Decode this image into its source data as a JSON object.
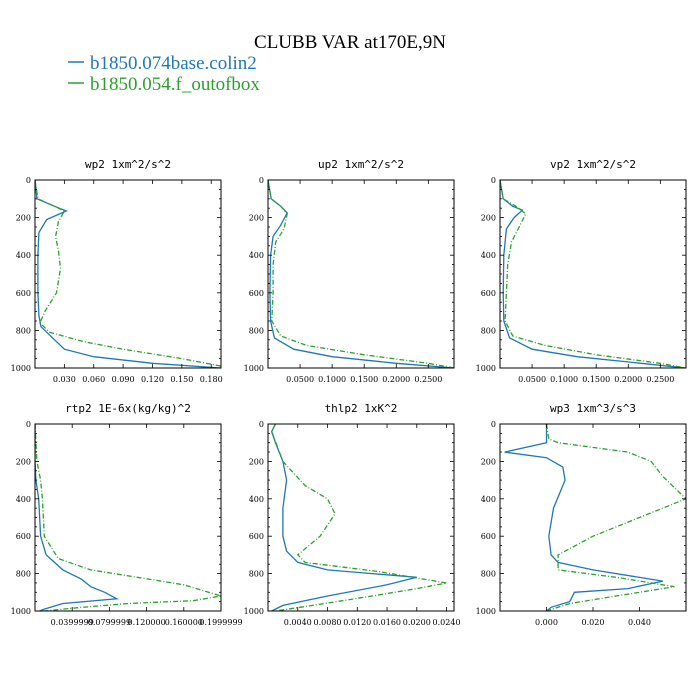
{
  "title": "CLUBB VAR at170E,9N",
  "legend": [
    {
      "label": "b1850.074base.colin2",
      "color": "#1f77b4",
      "dash": "solid"
    },
    {
      "label": "b1850.054.f_outofbox",
      "color": "#2ca02c",
      "dash": "dashdot"
    }
  ],
  "chart_data": [
    {
      "type": "line",
      "title": "wp2  1xm^2/s^2",
      "xlim": [
        0.0,
        0.19
      ],
      "ylim": [
        1000,
        0
      ],
      "xticks": [
        0.03,
        0.06,
        0.09,
        0.12,
        0.15,
        0.18
      ],
      "xtick_labels": [
        "0.030",
        "0.060",
        "0.090",
        "0.120",
        "0.150",
        "0.180"
      ],
      "yticks": [
        0,
        200,
        400,
        600,
        800,
        1000
      ],
      "series": [
        {
          "name": "b1850.074base.colin2",
          "x": [
            0.0,
            0.002,
            0.02,
            0.032,
            0.012,
            0.004,
            0.003,
            0.003,
            0.004,
            0.006,
            0.02,
            0.03,
            0.06,
            0.12,
            0.19
          ],
          "y": [
            0,
            100,
            140,
            165,
            210,
            280,
            400,
            600,
            720,
            780,
            850,
            900,
            940,
            975,
            1000
          ]
        },
        {
          "name": "b1850.054.f_outofbox",
          "x": [
            0.0,
            0.003,
            0.02,
            0.03,
            0.024,
            0.021,
            0.024,
            0.026,
            0.022,
            0.01,
            0.005,
            0.015,
            0.05,
            0.09,
            0.15,
            0.19
          ],
          "y": [
            0,
            100,
            140,
            165,
            220,
            300,
            380,
            470,
            600,
            700,
            760,
            810,
            860,
            900,
            950,
            990
          ]
        }
      ]
    },
    {
      "type": "line",
      "title": "up2  1xm^2/s^2",
      "xlim": [
        0.0,
        0.29
      ],
      "ylim": [
        1000,
        0
      ],
      "xticks": [
        0.05,
        0.1,
        0.15,
        0.2,
        0.25
      ],
      "xtick_labels": [
        "0.0500",
        "0.1000",
        "0.1500",
        "0.2000",
        "0.2500"
      ],
      "yticks": [
        0,
        200,
        400,
        600,
        800,
        1000
      ],
      "series": [
        {
          "name": "b1850.074base.colin2",
          "x": [
            0.0,
            0.005,
            0.02,
            0.03,
            0.02,
            0.008,
            0.004,
            0.003,
            0.004,
            0.01,
            0.04,
            0.1,
            0.2,
            0.29
          ],
          "y": [
            0,
            100,
            140,
            175,
            240,
            300,
            400,
            600,
            750,
            840,
            900,
            940,
            975,
            1000
          ]
        },
        {
          "name": "b1850.054.f_outofbox",
          "x": [
            0.0,
            0.005,
            0.02,
            0.03,
            0.025,
            0.012,
            0.008,
            0.008,
            0.006,
            0.02,
            0.06,
            0.15,
            0.25,
            0.29
          ],
          "y": [
            0,
            100,
            140,
            180,
            260,
            330,
            450,
            600,
            750,
            830,
            880,
            930,
            975,
            1000
          ]
        }
      ]
    },
    {
      "type": "line",
      "title": "vp2  1xm^2/s^2",
      "xlim": [
        0.0,
        0.29
      ],
      "ylim": [
        1000,
        0
      ],
      "xticks": [
        0.05,
        0.1,
        0.15,
        0.2,
        0.25
      ],
      "xtick_labels": [
        "0.0500",
        "0.1000",
        "0.1500",
        "0.2000",
        "0.2500"
      ],
      "yticks": [
        0,
        200,
        400,
        600,
        800,
        1000
      ],
      "series": [
        {
          "name": "b1850.074base.colin2",
          "x": [
            0.0,
            0.005,
            0.02,
            0.035,
            0.022,
            0.01,
            0.006,
            0.005,
            0.006,
            0.015,
            0.05,
            0.12,
            0.22,
            0.29
          ],
          "y": [
            0,
            100,
            140,
            160,
            200,
            260,
            400,
            600,
            750,
            840,
            900,
            940,
            975,
            1000
          ]
        },
        {
          "name": "b1850.054.f_outofbox",
          "x": [
            0.0,
            0.005,
            0.025,
            0.04,
            0.03,
            0.018,
            0.012,
            0.01,
            0.008,
            0.02,
            0.07,
            0.15,
            0.25,
            0.29
          ],
          "y": [
            0,
            100,
            140,
            180,
            250,
            330,
            450,
            600,
            750,
            830,
            880,
            930,
            975,
            1000
          ]
        }
      ]
    },
    {
      "type": "line",
      "title": "rtp2  1E-6x(kg/kg)^2",
      "xlim": [
        0.0,
        0.2
      ],
      "ylim": [
        1000,
        0
      ],
      "xticks": [
        0.04,
        0.08,
        0.12,
        0.16,
        0.2
      ],
      "xtick_labels": [
        "0.0399999",
        "0.0799999",
        "0.120000",
        "0.160000",
        "0.1999999"
      ],
      "yticks": [
        0,
        200,
        400,
        600,
        800,
        1000
      ],
      "series": [
        {
          "name": "b1850.074base.colin2",
          "x": [
            0.0,
            0.0,
            0.001,
            0.004,
            0.006,
            0.012,
            0.03,
            0.05,
            0.06,
            0.075,
            0.088,
            0.03,
            0.01,
            0.005
          ],
          "y": [
            0,
            200,
            300,
            400,
            600,
            700,
            780,
            830,
            870,
            900,
            935,
            960,
            990,
            1000
          ]
        },
        {
          "name": "b1850.054.f_outofbox",
          "x": [
            0.0,
            0.002,
            0.006,
            0.008,
            0.01,
            0.025,
            0.06,
            0.11,
            0.16,
            0.2,
            0.17,
            0.1,
            0.04,
            0.01
          ],
          "y": [
            0,
            200,
            300,
            400,
            600,
            720,
            780,
            820,
            860,
            920,
            945,
            960,
            985,
            1000
          ]
        }
      ]
    },
    {
      "type": "line",
      "title": "thlp2  1xK^2",
      "xlim": [
        0.0,
        0.025
      ],
      "ylim": [
        1000,
        0
      ],
      "xticks": [
        0.004,
        0.008,
        0.012,
        0.016,
        0.02,
        0.024
      ],
      "xtick_labels": [
        "0.0040",
        "0.0080",
        "0.0120",
        "0.0160",
        "0.0200",
        "0.0240"
      ],
      "yticks": [
        0,
        200,
        400,
        600,
        800,
        1000
      ],
      "series": [
        {
          "name": "b1850.074base.colin2",
          "x": [
            0.001,
            0.0005,
            0.001,
            0.002,
            0.0025,
            0.002,
            0.002,
            0.0025,
            0.004,
            0.008,
            0.014,
            0.02,
            0.016,
            0.008,
            0.002,
            0.0005
          ],
          "y": [
            0,
            40,
            100,
            200,
            300,
            450,
            600,
            680,
            740,
            780,
            800,
            820,
            860,
            920,
            970,
            1000
          ]
        },
        {
          "name": "b1850.054.f_outofbox",
          "x": [
            0.001,
            0.0005,
            0.002,
            0.005,
            0.008,
            0.009,
            0.007,
            0.004,
            0.005,
            0.015,
            0.024,
            0.02,
            0.014,
            0.006,
            0.001
          ],
          "y": [
            0,
            40,
            200,
            330,
            400,
            480,
            600,
            700,
            740,
            790,
            850,
            880,
            920,
            970,
            1000
          ]
        }
      ]
    },
    {
      "type": "line",
      "title": "wp3  1xm^3/s^3",
      "xlim": [
        -0.02,
        0.06
      ],
      "ylim": [
        1000,
        0
      ],
      "xticks": [
        0.0,
        0.02,
        0.04
      ],
      "xtick_labels": [
        "0.000",
        "0.020",
        "0.040"
      ],
      "yticks": [
        0,
        200,
        400,
        600,
        800,
        1000
      ],
      "series": [
        {
          "name": "b1850.074base.colin2",
          "x": [
            0.0,
            0.0,
            -0.018,
            0.0,
            0.007,
            0.008,
            0.003,
            0.001,
            0.002,
            0.005,
            0.02,
            0.05,
            0.035,
            0.012,
            0.01,
            0.002,
            0.0
          ],
          "y": [
            0,
            100,
            150,
            180,
            230,
            300,
            450,
            600,
            700,
            740,
            780,
            840,
            880,
            900,
            950,
            980,
            1000
          ]
        },
        {
          "name": "b1850.054.f_outofbox",
          "x": [
            0.0,
            0.001,
            0.005,
            0.035,
            0.045,
            0.05,
            0.06,
            0.04,
            0.02,
            0.005,
            0.005,
            0.03,
            0.055,
            0.03,
            0.01,
            0.0
          ],
          "y": [
            0,
            80,
            100,
            150,
            200,
            280,
            400,
            500,
            600,
            700,
            780,
            820,
            870,
            920,
            960,
            1000
          ]
        }
      ]
    }
  ]
}
